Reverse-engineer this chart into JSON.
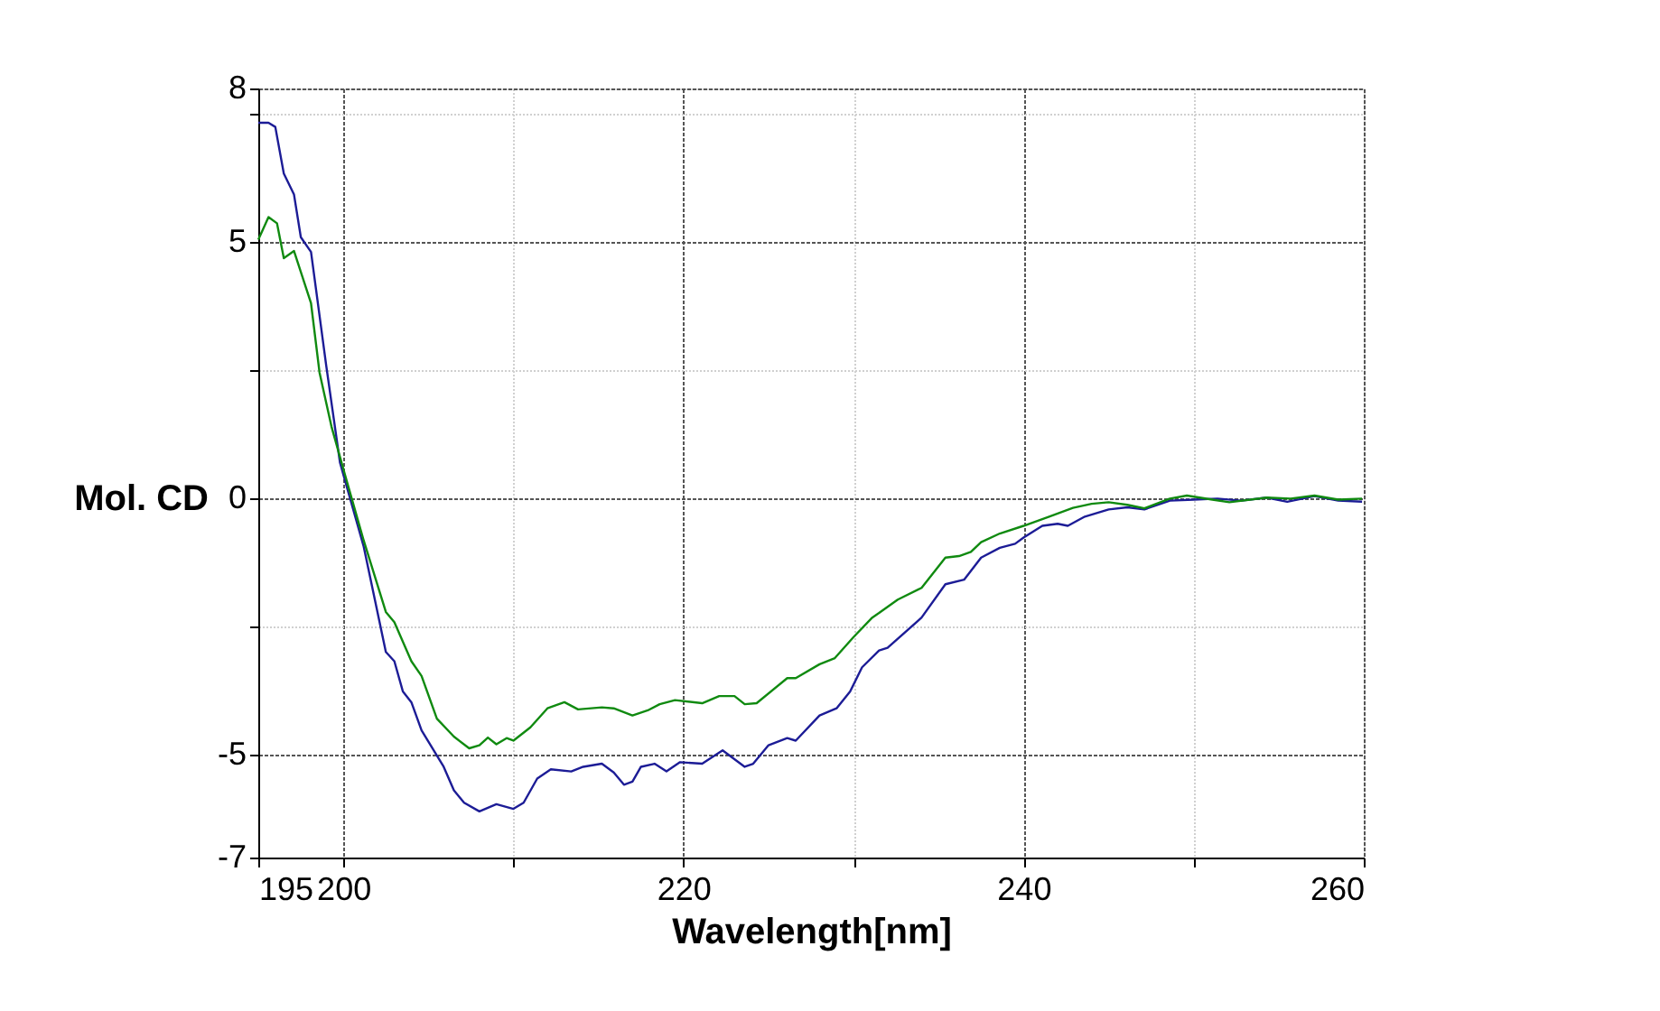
{
  "chart_data": {
    "type": "line",
    "xlabel": "Wavelength[nm]",
    "ylabel": "Mol. CD",
    "xlim": [
      195,
      260
    ],
    "xticks": [
      195,
      200,
      {
        "value": 210,
        "label": null
      },
      220,
      {
        "value": 230,
        "label": null
      },
      240,
      {
        "value": 250,
        "label": null
      },
      260
    ],
    "ylim": [
      -7,
      8
    ],
    "yticks": [
      -7,
      -5,
      {
        "value": -2.5,
        "label": null
      },
      0,
      {
        "value": 2.5,
        "label": null
      },
      5,
      {
        "value": 7.5,
        "label": null
      },
      8
    ],
    "grid": true,
    "marker": "none",
    "line_style": "solid",
    "series": [
      {
        "color": "#1c1c96",
        "x": [
          195.0,
          195.6,
          196.0,
          196.5,
          197.1,
          197.5,
          198.1,
          199.0,
          199.8,
          200.0,
          201.2,
          202.5,
          203.0,
          203.5,
          204.0,
          204.6,
          205.9,
          206.5,
          207.1,
          208.0,
          209.0,
          210.0,
          210.6,
          211.4,
          212.2,
          213.4,
          214.1,
          215.2,
          215.9,
          216.5,
          217.0,
          217.5,
          218.3,
          219.0,
          219.8,
          221.1,
          222.3,
          223.6,
          224.1,
          225.0,
          226.1,
          226.6,
          228.0,
          229.0,
          229.8,
          230.5,
          231.5,
          232.0,
          234.0,
          235.4,
          236.5,
          237.5,
          238.6,
          239.5,
          240.0,
          241.1,
          242.0,
          242.6,
          243.6,
          245.0,
          246.1,
          247.1,
          248.6,
          250.0,
          251.4,
          252.8,
          254.3,
          255.5,
          257.1,
          258.5,
          259.9
        ],
        "values": [
          7.33,
          7.33,
          7.25,
          6.34,
          5.93,
          5.1,
          4.81,
          2.58,
          0.71,
          0.47,
          -0.94,
          -2.99,
          -3.17,
          -3.76,
          -3.97,
          -4.52,
          -5.23,
          -5.69,
          -5.93,
          -6.1,
          -5.96,
          -6.05,
          -5.93,
          -5.46,
          -5.28,
          -5.32,
          -5.23,
          -5.17,
          -5.34,
          -5.58,
          -5.52,
          -5.23,
          -5.17,
          -5.32,
          -5.14,
          -5.17,
          -4.91,
          -5.23,
          -5.17,
          -4.81,
          -4.67,
          -4.72,
          -4.23,
          -4.09,
          -3.76,
          -3.29,
          -2.96,
          -2.91,
          -2.32,
          -1.67,
          -1.58,
          -1.15,
          -0.96,
          -0.88,
          -0.76,
          -0.53,
          -0.49,
          -0.53,
          -0.35,
          -0.21,
          -0.17,
          -0.21,
          -0.04,
          -0.02,
          0,
          -0.04,
          0.02,
          -0.06,
          0.05,
          -0.04,
          -0.06
        ]
      },
      {
        "color": "#108a10",
        "x": [
          195.0,
          195.6,
          196.1,
          196.5,
          197.1,
          198.1,
          198.6,
          199.3,
          200.0,
          201.2,
          202.5,
          203.0,
          204.0,
          204.6,
          205.5,
          206.5,
          207.4,
          208.0,
          208.5,
          209.0,
          209.6,
          210.0,
          211.0,
          212.0,
          213.0,
          213.8,
          215.2,
          215.9,
          217.0,
          217.9,
          218.6,
          219.5,
          221.1,
          222.1,
          223.0,
          223.6,
          224.3,
          226.1,
          226.6,
          228.0,
          228.9,
          230.0,
          231.1,
          231.5,
          232.6,
          234.0,
          235.4,
          236.2,
          236.9,
          237.5,
          238.6,
          240.0,
          241.5,
          242.9,
          244.0,
          245.0,
          246.1,
          247.1,
          248.6,
          249.6,
          251.1,
          252.1,
          254.3,
          255.7,
          257.1,
          258.5,
          259.9
        ],
        "values": [
          5.05,
          5.49,
          5.37,
          4.69,
          4.83,
          3.81,
          2.46,
          1.41,
          0.58,
          -0.82,
          -2.21,
          -2.41,
          -3.17,
          -3.46,
          -4.29,
          -4.64,
          -4.87,
          -4.81,
          -4.66,
          -4.79,
          -4.67,
          -4.72,
          -4.46,
          -4.09,
          -3.97,
          -4.11,
          -4.07,
          -4.09,
          -4.23,
          -4.13,
          -4.01,
          -3.93,
          -3.99,
          -3.85,
          -3.85,
          -4.01,
          -3.99,
          -3.5,
          -3.5,
          -3.23,
          -3.11,
          -2.7,
          -2.32,
          -2.23,
          -1.97,
          -1.74,
          -1.15,
          -1.12,
          -1.04,
          -0.85,
          -0.68,
          -0.53,
          -0.35,
          -0.18,
          -0.1,
          -0.07,
          -0.12,
          -0.19,
          0,
          0.06,
          -0.02,
          -0.07,
          0.02,
          0,
          0.06,
          -0.02,
          0
        ]
      }
    ]
  }
}
